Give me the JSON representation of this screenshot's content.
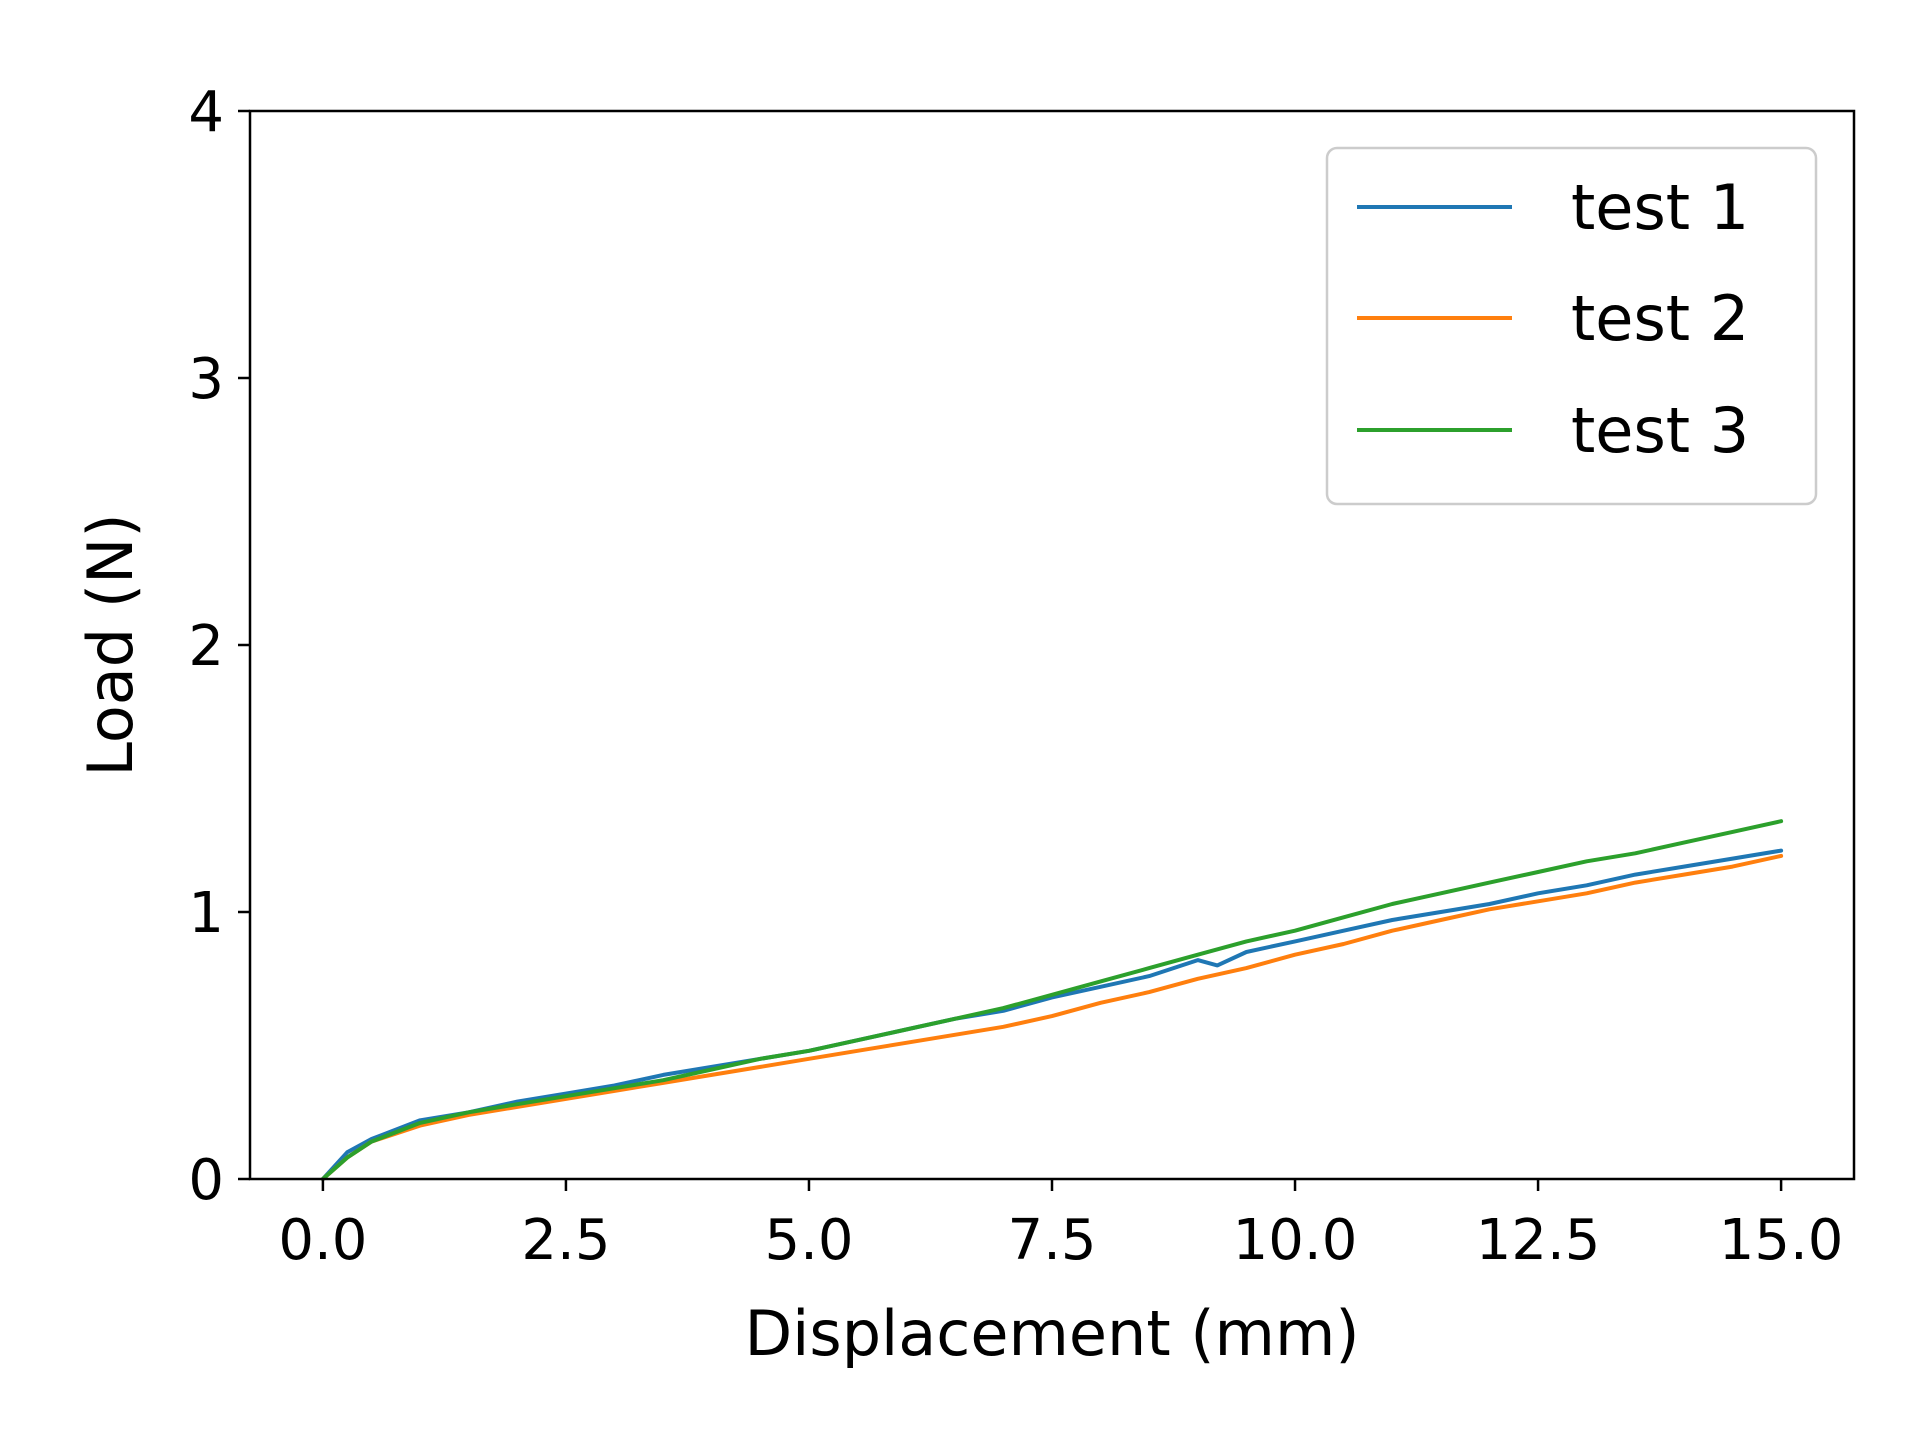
{
  "chart_data": {
    "type": "line",
    "xlabel": "Displacement (mm)",
    "ylabel": "Load (N)",
    "xlim": [
      -0.75,
      15.75
    ],
    "ylim": [
      0,
      4
    ],
    "xticks": [
      0.0,
      2.5,
      5.0,
      7.5,
      10.0,
      12.5,
      15.0
    ],
    "xtick_labels": [
      "0.0",
      "2.5",
      "5.0",
      "7.5",
      "10.0",
      "12.5",
      "15.0"
    ],
    "yticks": [
      0,
      1,
      2,
      3,
      4
    ],
    "ytick_labels": [
      "0",
      "1",
      "2",
      "3",
      "4"
    ],
    "grid": false,
    "legend_position": "top-right",
    "series": [
      {
        "name": "test 1",
        "color": "#1f77b4",
        "x": [
          0.0,
          0.25,
          0.5,
          1.0,
          1.5,
          2.0,
          2.5,
          3.0,
          3.5,
          4.0,
          4.5,
          5.0,
          5.5,
          6.0,
          6.5,
          7.0,
          7.5,
          8.0,
          8.5,
          9.0,
          9.2,
          9.5,
          10.0,
          10.5,
          11.0,
          11.5,
          12.0,
          12.5,
          13.0,
          13.5,
          14.0,
          14.5,
          15.0
        ],
        "y": [
          0.0,
          0.1,
          0.15,
          0.22,
          0.25,
          0.29,
          0.32,
          0.35,
          0.39,
          0.42,
          0.45,
          0.48,
          0.52,
          0.56,
          0.6,
          0.63,
          0.68,
          0.72,
          0.76,
          0.82,
          0.8,
          0.85,
          0.89,
          0.93,
          0.97,
          1.0,
          1.03,
          1.07,
          1.1,
          1.14,
          1.17,
          1.2,
          1.23
        ]
      },
      {
        "name": "test 2",
        "color": "#ff7f0e",
        "x": [
          0.0,
          0.25,
          0.5,
          1.0,
          1.5,
          2.0,
          2.5,
          3.0,
          3.5,
          4.0,
          4.5,
          5.0,
          5.5,
          6.0,
          6.5,
          7.0,
          7.5,
          8.0,
          8.5,
          9.0,
          9.5,
          10.0,
          10.5,
          11.0,
          11.5,
          12.0,
          12.5,
          13.0,
          13.5,
          14.0,
          14.5,
          15.0
        ],
        "y": [
          0.0,
          0.08,
          0.14,
          0.2,
          0.24,
          0.27,
          0.3,
          0.33,
          0.36,
          0.39,
          0.42,
          0.45,
          0.48,
          0.51,
          0.54,
          0.57,
          0.61,
          0.66,
          0.7,
          0.75,
          0.79,
          0.84,
          0.88,
          0.93,
          0.97,
          1.01,
          1.04,
          1.07,
          1.11,
          1.14,
          1.17,
          1.21
        ]
      },
      {
        "name": "test 3",
        "color": "#2ca02c",
        "x": [
          0.0,
          0.25,
          0.5,
          1.0,
          1.5,
          2.0,
          2.5,
          3.0,
          3.5,
          4.0,
          4.5,
          5.0,
          5.5,
          6.0,
          6.5,
          7.0,
          7.5,
          8.0,
          8.5,
          9.0,
          9.5,
          10.0,
          10.5,
          11.0,
          11.5,
          12.0,
          12.5,
          13.0,
          13.5,
          14.0,
          14.5,
          15.0
        ],
        "y": [
          0.0,
          0.08,
          0.14,
          0.21,
          0.25,
          0.28,
          0.31,
          0.34,
          0.37,
          0.41,
          0.45,
          0.48,
          0.52,
          0.56,
          0.6,
          0.64,
          0.69,
          0.74,
          0.79,
          0.84,
          0.89,
          0.93,
          0.98,
          1.03,
          1.07,
          1.11,
          1.15,
          1.19,
          1.22,
          1.26,
          1.3,
          1.34
        ]
      }
    ]
  }
}
